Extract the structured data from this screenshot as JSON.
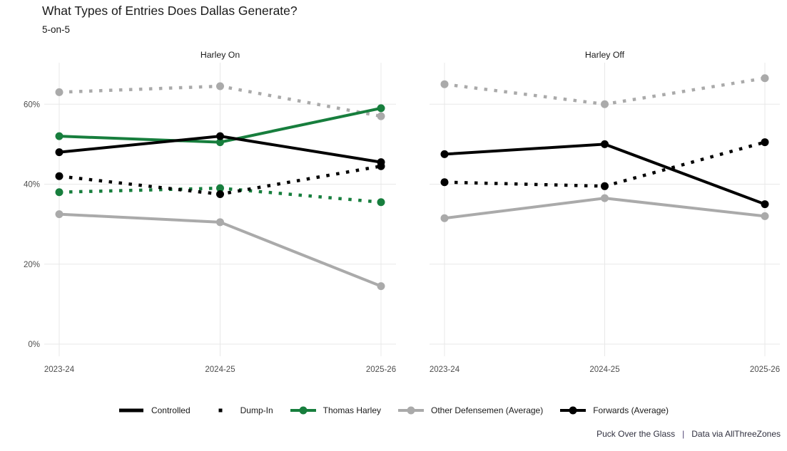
{
  "header": {
    "title": "What Types of Entries Does Dallas Generate?",
    "subtitle": "5-on-5"
  },
  "footer": {
    "left": "Puck Over the Glass",
    "separator": "|",
    "right": "Data via AllThreeZones"
  },
  "colors": {
    "green": "#177e3d",
    "gray": "#aaaaaa",
    "black": "#000000",
    "gridline": "#e8e8e8",
    "axis_text": "#4d4d4d",
    "title_text": "#1a1a1a",
    "footer_text": "#30303f",
    "footer_separator": "#4f4273"
  },
  "legend": {
    "items": [
      {
        "label": "Controlled",
        "swatch": "solid-line",
        "color": "#000000"
      },
      {
        "label": "Dump-In",
        "swatch": "dot",
        "color": "#000000"
      },
      {
        "label": "Thomas Harley",
        "swatch": "line-circle",
        "color": "#177e3d"
      },
      {
        "label": "Other Defensemen (Average)",
        "swatch": "line-circle",
        "color": "#aaaaaa"
      },
      {
        "label": "Forwards (Average)",
        "swatch": "line-circle",
        "color": "#000000"
      }
    ]
  },
  "chart_data": {
    "type": "line",
    "title": "What Types of Entries Does Dallas Generate?",
    "subtitle": "5-on-5",
    "x": [
      "2023-24",
      "2024-25",
      "2025-26"
    ],
    "y_ticks": [
      {
        "value": 0,
        "label": "0%"
      },
      {
        "value": 20,
        "label": "20%"
      },
      {
        "value": 40,
        "label": "40%"
      },
      {
        "value": 60,
        "label": "60%"
      }
    ],
    "ylim": [
      -3,
      70
    ],
    "units": "percent of entries",
    "grid": true,
    "legend_position": "bottom",
    "panels": [
      {
        "title": "Harley On",
        "series": [
          {
            "name": "Other Defensemen (Average) - Controlled",
            "group": "Other Defensemen (Average)",
            "entry_type": "Controlled",
            "color": "#aaaaaa",
            "linetype": "solid",
            "values": [
              32.5,
              30.5,
              14.5
            ]
          },
          {
            "name": "Other Defensemen (Average) - Dump-In",
            "group": "Other Defensemen (Average)",
            "entry_type": "Dump-In",
            "color": "#aaaaaa",
            "linetype": "dotted",
            "values": [
              63,
              64.5,
              57
            ]
          },
          {
            "name": "Thomas Harley - Controlled",
            "group": "Thomas Harley",
            "entry_type": "Controlled",
            "color": "#177e3d",
            "linetype": "solid",
            "values": [
              52,
              50.5,
              59
            ]
          },
          {
            "name": "Thomas Harley - Dump-In",
            "group": "Thomas Harley",
            "entry_type": "Dump-In",
            "color": "#177e3d",
            "linetype": "dotted",
            "values": [
              38,
              39,
              35.5
            ]
          },
          {
            "name": "Forwards (Average) - Controlled",
            "group": "Forwards (Average)",
            "entry_type": "Controlled",
            "color": "#000000",
            "linetype": "solid",
            "values": [
              48,
              52,
              45.5
            ]
          },
          {
            "name": "Forwards (Average) - Dump-In",
            "group": "Forwards (Average)",
            "entry_type": "Dump-In",
            "color": "#000000",
            "linetype": "dotted",
            "values": [
              42,
              37.5,
              44.5
            ]
          }
        ]
      },
      {
        "title": "Harley Off",
        "series": [
          {
            "name": "Other Defensemen (Average) - Controlled",
            "group": "Other Defensemen (Average)",
            "entry_type": "Controlled",
            "color": "#aaaaaa",
            "linetype": "solid",
            "values": [
              31.5,
              36.5,
              32
            ]
          },
          {
            "name": "Other Defensemen (Average) - Dump-In",
            "group": "Other Defensemen (Average)",
            "entry_type": "Dump-In",
            "color": "#aaaaaa",
            "linetype": "dotted",
            "values": [
              65,
              60,
              66.5
            ]
          },
          {
            "name": "Forwards (Average) - Controlled",
            "group": "Forwards (Average)",
            "entry_type": "Controlled",
            "color": "#000000",
            "linetype": "solid",
            "values": [
              47.5,
              50,
              35
            ]
          },
          {
            "name": "Forwards (Average) - Dump-In",
            "group": "Forwards (Average)",
            "entry_type": "Dump-In",
            "color": "#000000",
            "linetype": "dotted",
            "values": [
              40.5,
              39.5,
              50.5
            ]
          }
        ]
      }
    ]
  }
}
